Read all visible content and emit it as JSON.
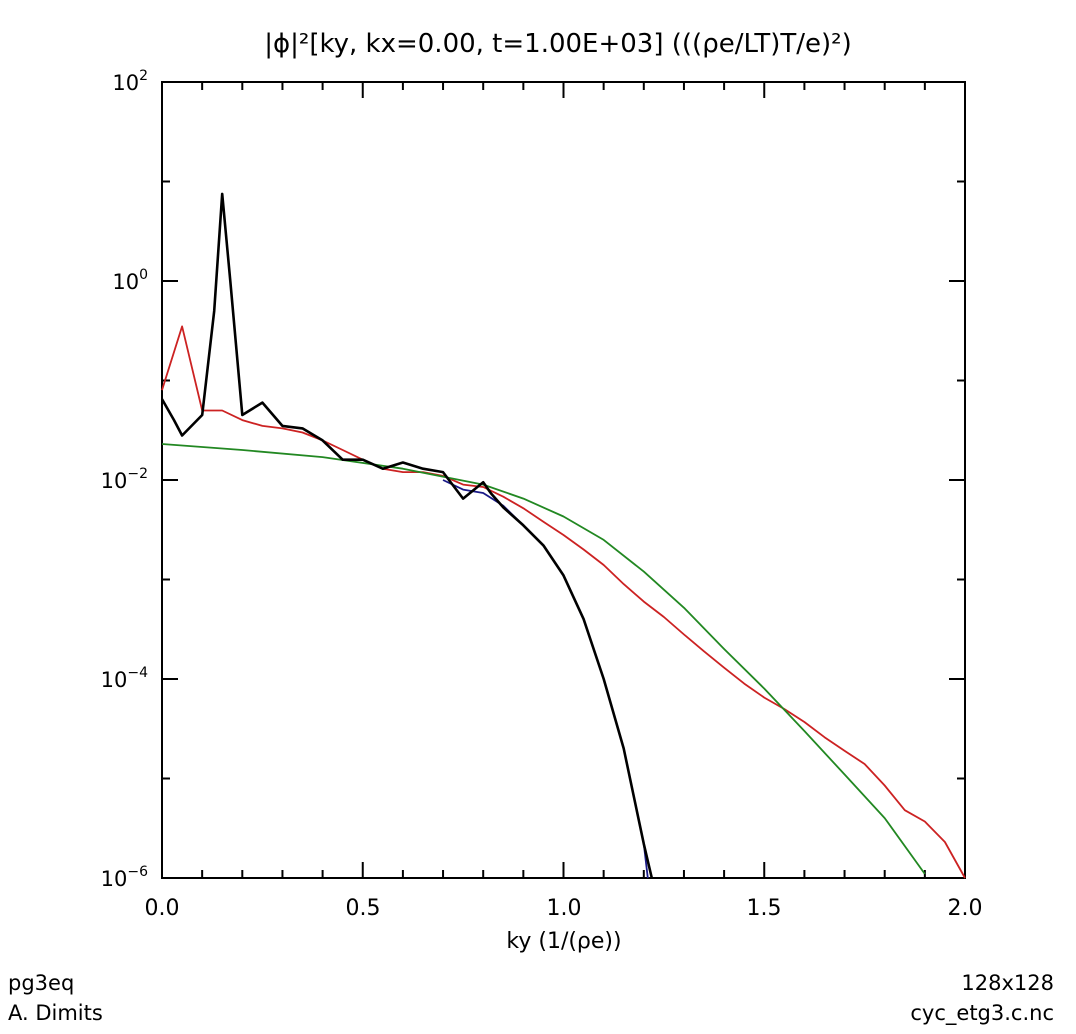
{
  "chart_data": {
    "type": "line",
    "title": "|ϕ|²[ky, kx=0.00, t=1.00E+03] (((ρe/LT)T/e)²)",
    "xlabel": "ky (1/(ρe))",
    "ylabel": "",
    "xlim": [
      0,
      2
    ],
    "ylim": [
      1e-06,
      100
    ],
    "yscale": "log",
    "grid": false,
    "x_ticks": [
      "0.0",
      "0.5",
      "1.0",
      "1.5",
      "2.0"
    ],
    "y_ticks": [
      {
        "value": 100,
        "base": "10",
        "exp": "2"
      },
      {
        "value": 1,
        "base": "10",
        "exp": "0"
      },
      {
        "value": 0.01,
        "base": "10",
        "exp": "−2"
      },
      {
        "value": 0.0001,
        "base": "10",
        "exp": "−4"
      },
      {
        "value": 1e-06,
        "base": "10",
        "exp": "−6"
      }
    ],
    "series": [
      {
        "color": "#cc2222",
        "points": [
          [
            0,
            0.08
          ],
          [
            0.05,
            0.35
          ],
          [
            0.1,
            0.05
          ],
          [
            0.15,
            0.05
          ],
          [
            0.2,
            0.04
          ],
          [
            0.25,
            0.035
          ],
          [
            0.3,
            0.033
          ],
          [
            0.35,
            0.03
          ],
          [
            0.4,
            0.025
          ],
          [
            0.45,
            0.02
          ],
          [
            0.5,
            0.016
          ],
          [
            0.55,
            0.013
          ],
          [
            0.6,
            0.012
          ],
          [
            0.65,
            0.012
          ],
          [
            0.7,
            0.011
          ],
          [
            0.75,
            0.009
          ],
          [
            0.8,
            0.0085
          ],
          [
            0.85,
            0.0068
          ],
          [
            0.9,
            0.0052
          ],
          [
            0.95,
            0.0038
          ],
          [
            1.0,
            0.0028
          ],
          [
            1.05,
            0.002
          ],
          [
            1.1,
            0.0014
          ],
          [
            1.15,
            0.0009
          ],
          [
            1.2,
            0.0006
          ],
          [
            1.25,
            0.00042
          ],
          [
            1.3,
            0.00028
          ],
          [
            1.35,
            0.00019
          ],
          [
            1.4,
            0.00013
          ],
          [
            1.45,
            9e-05
          ],
          [
            1.5,
            6.5e-05
          ],
          [
            1.55,
            5e-05
          ],
          [
            1.6,
            3.7e-05
          ],
          [
            1.65,
            2.6e-05
          ],
          [
            1.7,
            1.9e-05
          ],
          [
            1.75,
            1.4e-05
          ],
          [
            1.8,
            8.5e-06
          ],
          [
            1.85,
            4.8e-06
          ],
          [
            1.9,
            3.7e-06
          ],
          [
            1.95,
            2.3e-06
          ],
          [
            2.0,
            1e-06
          ]
        ]
      },
      {
        "color": "#228822",
        "points": [
          [
            0,
            0.023
          ],
          [
            0.2,
            0.02
          ],
          [
            0.4,
            0.017
          ],
          [
            0.6,
            0.013
          ],
          [
            0.8,
            0.009
          ],
          [
            0.9,
            0.0065
          ],
          [
            1.0,
            0.0043
          ],
          [
            1.1,
            0.0025
          ],
          [
            1.2,
            0.0012
          ],
          [
            1.3,
            0.00052
          ],
          [
            1.4,
            0.0002
          ],
          [
            1.5,
            8e-05
          ],
          [
            1.6,
            3e-05
          ],
          [
            1.7,
            1.1e-05
          ],
          [
            1.8,
            4e-06
          ],
          [
            1.9,
            1.1e-06
          ]
        ]
      },
      {
        "color": "#1a1a88",
        "points": [
          [
            0.7,
            0.01
          ],
          [
            0.75,
            0.008
          ],
          [
            0.8,
            0.0074
          ],
          [
            0.85,
            0.0055
          ],
          [
            0.9,
            0.0035
          ],
          [
            0.95,
            0.0022
          ],
          [
            1.0,
            0.0011
          ],
          [
            1.05,
            0.0004
          ],
          [
            1.1,
            0.0001
          ],
          [
            1.15,
            2e-05
          ],
          [
            1.2,
            2.2e-06
          ],
          [
            1.21,
            1e-06
          ]
        ]
      },
      {
        "color": "#000000",
        "points": [
          [
            0,
            0.065
          ],
          [
            0.03,
            0.04
          ],
          [
            0.05,
            0.028
          ],
          [
            0.1,
            0.045
          ],
          [
            0.13,
            0.5
          ],
          [
            0.15,
            7.5
          ],
          [
            0.17,
            1.0
          ],
          [
            0.2,
            0.045
          ],
          [
            0.25,
            0.06
          ],
          [
            0.3,
            0.035
          ],
          [
            0.35,
            0.033
          ],
          [
            0.4,
            0.025
          ],
          [
            0.45,
            0.016
          ],
          [
            0.5,
            0.016
          ],
          [
            0.55,
            0.013
          ],
          [
            0.6,
            0.015
          ],
          [
            0.65,
            0.013
          ],
          [
            0.7,
            0.012
          ],
          [
            0.75,
            0.0065
          ],
          [
            0.8,
            0.0095
          ],
          [
            0.82,
            0.0073
          ],
          [
            0.85,
            0.0053
          ],
          [
            0.9,
            0.0035
          ],
          [
            0.95,
            0.0022
          ],
          [
            1.0,
            0.0011
          ],
          [
            1.05,
            0.0004
          ],
          [
            1.1,
            0.0001
          ],
          [
            1.15,
            2e-05
          ],
          [
            1.2,
            2.2e-06
          ],
          [
            1.22,
            1e-06
          ]
        ]
      }
    ]
  },
  "footer": {
    "left_line1": "pg3eq",
    "left_line2": "A. Dimits",
    "right_line1": "128x128",
    "right_line2": "cyc_etg3.c.nc"
  }
}
